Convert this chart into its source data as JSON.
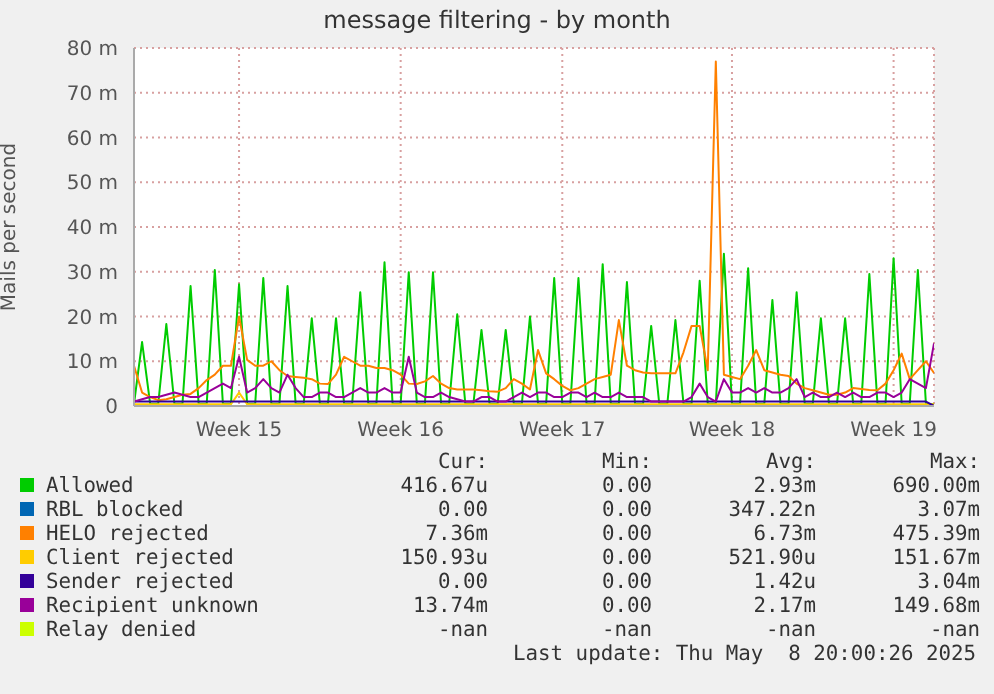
{
  "chart_data": {
    "type": "line",
    "title": "message filtering - by month",
    "ylabel": "Mails per second",
    "categories": [
      null,
      null,
      null,
      null,
      null,
      null,
      null,
      null,
      null,
      null,
      null,
      null,
      null,
      "Week 15",
      null,
      null,
      null,
      null,
      null,
      null,
      null,
      null,
      null,
      null,
      null,
      null,
      null,
      null,
      null,
      null,
      null,
      null,
      null,
      "Week 16",
      null,
      null,
      null,
      null,
      null,
      null,
      null,
      null,
      null,
      null,
      null,
      null,
      null,
      null,
      null,
      null,
      null,
      null,
      null,
      "Week 17",
      null,
      null,
      null,
      null,
      null,
      null,
      null,
      null,
      null,
      null,
      null,
      null,
      null,
      null,
      null,
      null,
      null,
      null,
      null,
      null,
      "Week 18",
      null,
      null,
      null,
      null,
      null,
      null,
      null,
      null,
      null,
      null,
      null,
      null,
      null,
      null,
      null,
      null,
      null,
      null,
      null,
      "Week 19",
      null,
      null,
      null,
      null,
      null
    ],
    "ylim": [
      0,
      80
    ],
    "yticks": [
      0,
      {
        "value": 10,
        "label": "10 m"
      },
      {
        "value": 20,
        "label": "20 m"
      },
      {
        "value": 30,
        "label": "30 m"
      },
      {
        "value": 40,
        "label": "40 m"
      },
      {
        "value": 50,
        "label": "50 m"
      },
      {
        "value": 60,
        "label": "60 m"
      },
      {
        "value": 70,
        "label": "70 m"
      },
      {
        "value": 80,
        "label": "80 m"
      }
    ],
    "grid": true,
    "legend": "bottom",
    "marker": "none",
    "line_style": "solid",
    "series": [
      {
        "name": "Allowed",
        "color": "#00cc00",
        "values": [
          0.5,
          14.3,
          0.5,
          0.5,
          18.3,
          0.5,
          0.5,
          26.8,
          0.5,
          0.5,
          30.4,
          0.5,
          0.5,
          27.2,
          0.5,
          0.5,
          28.6,
          0.5,
          0.5,
          26.8,
          0.5,
          0.5,
          19.6,
          0.5,
          0.5,
          19.6,
          0.5,
          0.5,
          25.4,
          0.5,
          0.5,
          32.1,
          0.5,
          0.5,
          29.9,
          0.5,
          0.5,
          29.9,
          0.5,
          0.5,
          20.5,
          0.5,
          0.5,
          17,
          0.5,
          0.5,
          17,
          0.5,
          0.5,
          20,
          0.5,
          0.5,
          28.6,
          0.5,
          0.5,
          28.6,
          0.5,
          0.5,
          31.7,
          0.5,
          0.5,
          27.7,
          0.5,
          0.5,
          17.9,
          0.5,
          0.5,
          19.2,
          0.5,
          0.5,
          28,
          0.5,
          0.5,
          34,
          0.5,
          0.5,
          30.8,
          0.5,
          0.5,
          23.7,
          0.5,
          0.5,
          25.4,
          0.5,
          0.5,
          19.6,
          0.5,
          0.5,
          19.6,
          0.5,
          0.5,
          29.5,
          0.5,
          0.5,
          33,
          0.5,
          0.5,
          30.4,
          0.5,
          0.4
        ]
      },
      {
        "name": "RBL blocked",
        "color": "#0066b3",
        "values": [
          null,
          null,
          null,
          null,
          null,
          null,
          null,
          null,
          null,
          null,
          null,
          null,
          null,
          null,
          null,
          null,
          null,
          null,
          null,
          null,
          null,
          null,
          null,
          null,
          null,
          null,
          null,
          null,
          null,
          null,
          null,
          null,
          null,
          null,
          null,
          null,
          null,
          null,
          null,
          null,
          null,
          null,
          null,
          null,
          null,
          null,
          null,
          null,
          null,
          null,
          null,
          null,
          null,
          null,
          null,
          null,
          null,
          null,
          null,
          null,
          null,
          null,
          null,
          null,
          null,
          null,
          null,
          null,
          null,
          null,
          null,
          null,
          null,
          null,
          null,
          null,
          null,
          null,
          null,
          null,
          null,
          null,
          null,
          null,
          null,
          null,
          null,
          null,
          null,
          null,
          null,
          null,
          null,
          null,
          null,
          null,
          null,
          null,
          null,
          null
        ]
      },
      {
        "name": "HELO rejected",
        "color": "#ff8000",
        "values": [
          9,
          3,
          2,
          1.3,
          1.5,
          2,
          2.5,
          2.7,
          4,
          5.8,
          7,
          9,
          9,
          20,
          10.3,
          9,
          9,
          10,
          8,
          6.7,
          6.5,
          6.3,
          6,
          5,
          4.9,
          7,
          11,
          10,
          9,
          9,
          8.5,
          8.5,
          8,
          7,
          5,
          4.9,
          5.5,
          6.7,
          5,
          4,
          3.7,
          3.7,
          3.7,
          3.5,
          3.3,
          3.2,
          4,
          6,
          5,
          3.7,
          12.5,
          7.3,
          6,
          4.5,
          3.5,
          4,
          5,
          6,
          6.5,
          7,
          19.2,
          9,
          8,
          7.5,
          7.3,
          7.3,
          7.3,
          7.3,
          12,
          17.9,
          17.9,
          8,
          77,
          7,
          6.5,
          6,
          9,
          12.5,
          8,
          7.5,
          7,
          6.7,
          5,
          4,
          3.5,
          3,
          2.5,
          2.5,
          3,
          4,
          3.8,
          3.6,
          3.5,
          5,
          8,
          11.7,
          6,
          8,
          10,
          7.4
        ]
      },
      {
        "name": "Client rejected",
        "color": "#ffcc00",
        "values": [
          0.4,
          0.4,
          0.4,
          0.4,
          0.4,
          0.4,
          0.4,
          0.4,
          0.4,
          0.4,
          0.4,
          0.4,
          0.4,
          3,
          0.4,
          0.4,
          0.4,
          0.4,
          0.4,
          0.4,
          0.4,
          0.4,
          0.4,
          0.4,
          0.4,
          0.4,
          0.4,
          0.4,
          0.4,
          0.4,
          0.4,
          0.4,
          0.4,
          0.4,
          0.4,
          0.4,
          0.4,
          0.4,
          0.4,
          0.4,
          0.4,
          0.4,
          0.4,
          0.4,
          0.4,
          0.4,
          0.4,
          0.4,
          0.4,
          0.4,
          0.4,
          0.4,
          0.4,
          0.4,
          0.4,
          0.4,
          0.4,
          0.4,
          0.4,
          0.4,
          0.4,
          0.4,
          0.4,
          0.4,
          0.4,
          0.4,
          0.4,
          0.4,
          0.4,
          0.4,
          0.4,
          0.4,
          0.4,
          0.4,
          0.4,
          0.4,
          0.4,
          0.4,
          0.4,
          0.4,
          0.4,
          0.4,
          0.4,
          0.4,
          0.4,
          0.4,
          0.4,
          0.4,
          0.4,
          0.4,
          0.4,
          0.4,
          0.4,
          0.4,
          0.4,
          0.4,
          0.4,
          0.4,
          0.4,
          0.4
        ]
      },
      {
        "name": "Sender rejected",
        "color": "#330099",
        "values": [
          1,
          1,
          1,
          1,
          1,
          1,
          1,
          1,
          1,
          1,
          1,
          1,
          1,
          1,
          1,
          1,
          1,
          1,
          1,
          1,
          1,
          1,
          1,
          1,
          1,
          1,
          1,
          1,
          1,
          1,
          1,
          1,
          1,
          1,
          1,
          1,
          1,
          1,
          1,
          1,
          1,
          1,
          1,
          1,
          1,
          1,
          1,
          1,
          1,
          1,
          1,
          1,
          1,
          1,
          1,
          1,
          1,
          1,
          1,
          1,
          1,
          1,
          1,
          1,
          1,
          1,
          1,
          1,
          1,
          1,
          1,
          1,
          1,
          1,
          1,
          1,
          1,
          1,
          1,
          1,
          1,
          1,
          1,
          1,
          1,
          1,
          1,
          1,
          1,
          1,
          1,
          1,
          1,
          1,
          1,
          1,
          1,
          1,
          1,
          0
        ]
      },
      {
        "name": "Recipient unknown",
        "color": "#990099",
        "values": [
          1,
          1.5,
          2,
          2,
          2.5,
          3,
          2.5,
          2,
          2,
          3,
          4,
          5,
          4,
          11,
          3,
          4,
          6,
          4,
          3,
          7,
          4,
          2,
          2,
          3,
          3,
          2,
          2,
          3,
          4,
          3,
          3,
          4,
          3,
          3,
          11,
          3,
          2,
          2,
          3,
          2,
          1.5,
          1,
          1,
          2,
          2,
          1,
          1,
          2,
          3,
          2,
          3,
          3,
          2,
          2,
          3,
          3,
          2,
          3,
          2,
          2,
          3,
          2,
          2,
          2,
          1,
          1,
          1,
          1,
          1,
          2,
          5,
          2,
          1,
          6,
          3,
          3,
          4,
          3,
          4,
          3,
          3,
          4,
          6,
          2,
          3,
          2,
          2,
          3,
          2,
          3,
          2,
          2,
          3,
          3,
          2,
          3,
          6,
          5,
          4,
          14
        ]
      },
      {
        "name": "Relay denied",
        "color": "#ccff00",
        "values": [
          null,
          null,
          null,
          null,
          null,
          null,
          null,
          null,
          null,
          null,
          null,
          null,
          null,
          null,
          null,
          null,
          null,
          null,
          null,
          null,
          null,
          null,
          null,
          null,
          null,
          null,
          null,
          null,
          null,
          null,
          null,
          null,
          null,
          null,
          null,
          null,
          null,
          null,
          null,
          null,
          null,
          null,
          null,
          null,
          null,
          null,
          null,
          null,
          null,
          null,
          null,
          null,
          null,
          null,
          null,
          null,
          null,
          null,
          null,
          null,
          null,
          null,
          null,
          null,
          null,
          null,
          null,
          null,
          null,
          null,
          null,
          null,
          null,
          null,
          null,
          null,
          null,
          null,
          null,
          null,
          null,
          null,
          null,
          null,
          null,
          null,
          null,
          null,
          null,
          null,
          null,
          null,
          null,
          null,
          null,
          null,
          null,
          null,
          null,
          null
        ]
      }
    ],
    "annotations": [
      "Cur:",
      "Min:",
      "Avg:",
      "Max:",
      "416.67u",
      "0.00",
      "2.93m",
      "690.00m",
      "0.00",
      "0.00",
      "347.22n",
      "3.07m",
      "7.36m",
      "0.00",
      "6.73m",
      "475.39m",
      "150.93u",
      "0.00",
      "521.90u",
      "151.67m",
      "0.00",
      "0.00",
      "1.42u",
      "3.04m",
      "13.74m",
      "0.00",
      "2.17m",
      "149.68m",
      "-nan",
      "-nan",
      "-nan",
      "-nan",
      "Last update: Thu May  8 20:00:26 2025"
    ]
  }
}
